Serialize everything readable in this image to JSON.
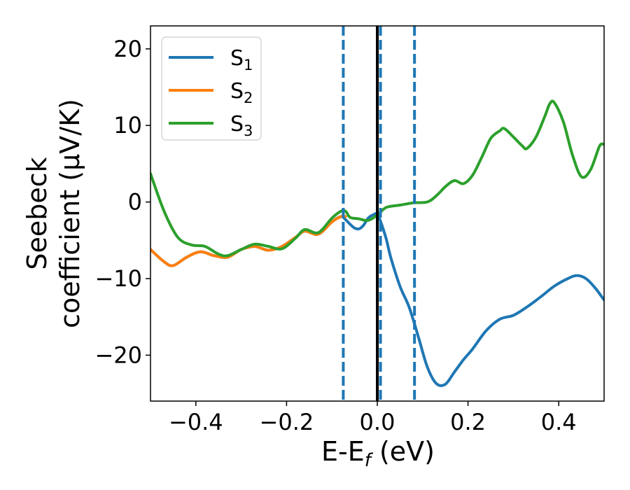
{
  "chart_data": {
    "type": "line",
    "xlabel_main": "E-E",
    "xlabel_sub": "f",
    "xlabel_unit": " (eV)",
    "ylabel_line1": "Seebeck",
    "ylabel_line2": "coefficient  (μV/K)",
    "xlim": [
      -0.5,
      0.5
    ],
    "ylim": [
      -26,
      23
    ],
    "x_ticks": [
      -0.4,
      -0.2,
      0.0,
      0.2,
      0.4
    ],
    "x_tick_labels": [
      "−0.4",
      "−0.2",
      "0.0",
      "0.2",
      "0.4"
    ],
    "y_ticks": [
      -20,
      -10,
      0,
      10,
      20
    ],
    "y_tick_labels": [
      "−20",
      "−10",
      "0",
      "10",
      "20"
    ],
    "grid": false,
    "legend_position": "top-left",
    "series": [
      {
        "name": "S",
        "name_sub": "1",
        "color": "#1f77b4",
        "x": [
          -0.5,
          -0.47,
          -0.45,
          -0.42,
          -0.39,
          -0.36,
          -0.33,
          -0.3,
          -0.27,
          -0.24,
          -0.21,
          -0.18,
          -0.16,
          -0.13,
          -0.1,
          -0.08,
          -0.07,
          -0.06,
          -0.05,
          -0.04,
          -0.03,
          -0.02,
          -0.01,
          0.0,
          0.01,
          0.02,
          0.03,
          0.05,
          0.07,
          0.09,
          0.11,
          0.13,
          0.15,
          0.17,
          0.19,
          0.21,
          0.24,
          0.27,
          0.3,
          0.33,
          0.36,
          0.39,
          0.42,
          0.44,
          0.46,
          0.48,
          0.5
        ],
        "y": [
          -6.2,
          -7.8,
          -8.3,
          -7.2,
          -6.5,
          -7.0,
          -7.2,
          -6.2,
          -5.8,
          -6.3,
          -5.8,
          -4.6,
          -3.8,
          -4.2,
          -2.6,
          -1.9,
          -2.3,
          -2.9,
          -3.4,
          -3.5,
          -3.0,
          -2.1,
          -1.7,
          -1.6,
          -3.0,
          -4.9,
          -7.3,
          -11.0,
          -13.7,
          -17.5,
          -21.5,
          -23.7,
          -23.8,
          -22.2,
          -20.6,
          -19.2,
          -16.8,
          -15.3,
          -14.8,
          -13.7,
          -12.4,
          -11.0,
          -10.0,
          -9.6,
          -10.0,
          -11.2,
          -12.8
        ]
      },
      {
        "name": "S",
        "name_sub": "2",
        "color": "#ff7f0e",
        "x": [
          -0.5,
          -0.47,
          -0.45,
          -0.42,
          -0.39,
          -0.36,
          -0.33,
          -0.3,
          -0.27,
          -0.24,
          -0.21,
          -0.18,
          -0.16,
          -0.13,
          -0.1,
          -0.08,
          -0.07
        ],
        "y": [
          -6.2,
          -7.8,
          -8.3,
          -7.2,
          -6.5,
          -7.0,
          -7.2,
          -6.2,
          -5.8,
          -6.3,
          -5.8,
          -4.6,
          -3.8,
          -4.2,
          -2.6,
          -1.9,
          -1.9
        ]
      },
      {
        "name": "S",
        "name_sub": "3",
        "color": "#2ca02c",
        "x": [
          -0.5,
          -0.47,
          -0.44,
          -0.41,
          -0.38,
          -0.35,
          -0.33,
          -0.3,
          -0.27,
          -0.24,
          -0.21,
          -0.18,
          -0.16,
          -0.13,
          -0.1,
          -0.08,
          -0.07,
          -0.06,
          -0.04,
          -0.02,
          0.0,
          0.02,
          0.05,
          0.08,
          0.11,
          0.13,
          0.15,
          0.17,
          0.19,
          0.21,
          0.23,
          0.25,
          0.27,
          0.28,
          0.3,
          0.32,
          0.33,
          0.35,
          0.37,
          0.38,
          0.39,
          0.41,
          0.43,
          0.45,
          0.47,
          0.49,
          0.5
        ],
        "y": [
          3.7,
          -1.2,
          -4.6,
          -5.6,
          -5.8,
          -6.8,
          -7.0,
          -6.2,
          -5.5,
          -5.8,
          -6.1,
          -4.7,
          -3.6,
          -4.0,
          -2.1,
          -1.2,
          -1.2,
          -2.0,
          -2.2,
          -2.4,
          -1.7,
          -0.7,
          -0.4,
          -0.1,
          0.0,
          0.8,
          2.0,
          2.8,
          2.4,
          3.5,
          5.8,
          8.3,
          9.3,
          9.6,
          8.5,
          7.3,
          7.0,
          8.5,
          11.3,
          12.8,
          13.0,
          10.5,
          6.2,
          3.3,
          4.2,
          7.3,
          7.5
        ]
      }
    ],
    "vlines": [
      {
        "x": -0.075,
        "style": "dashed",
        "color": "#1f77b4"
      },
      {
        "x": 0.007,
        "style": "dashed",
        "color": "#1f77b4"
      },
      {
        "x": 0.082,
        "style": "dashed",
        "color": "#1f77b4"
      },
      {
        "x": 0.0,
        "style": "solid",
        "color": "#000000"
      }
    ]
  }
}
